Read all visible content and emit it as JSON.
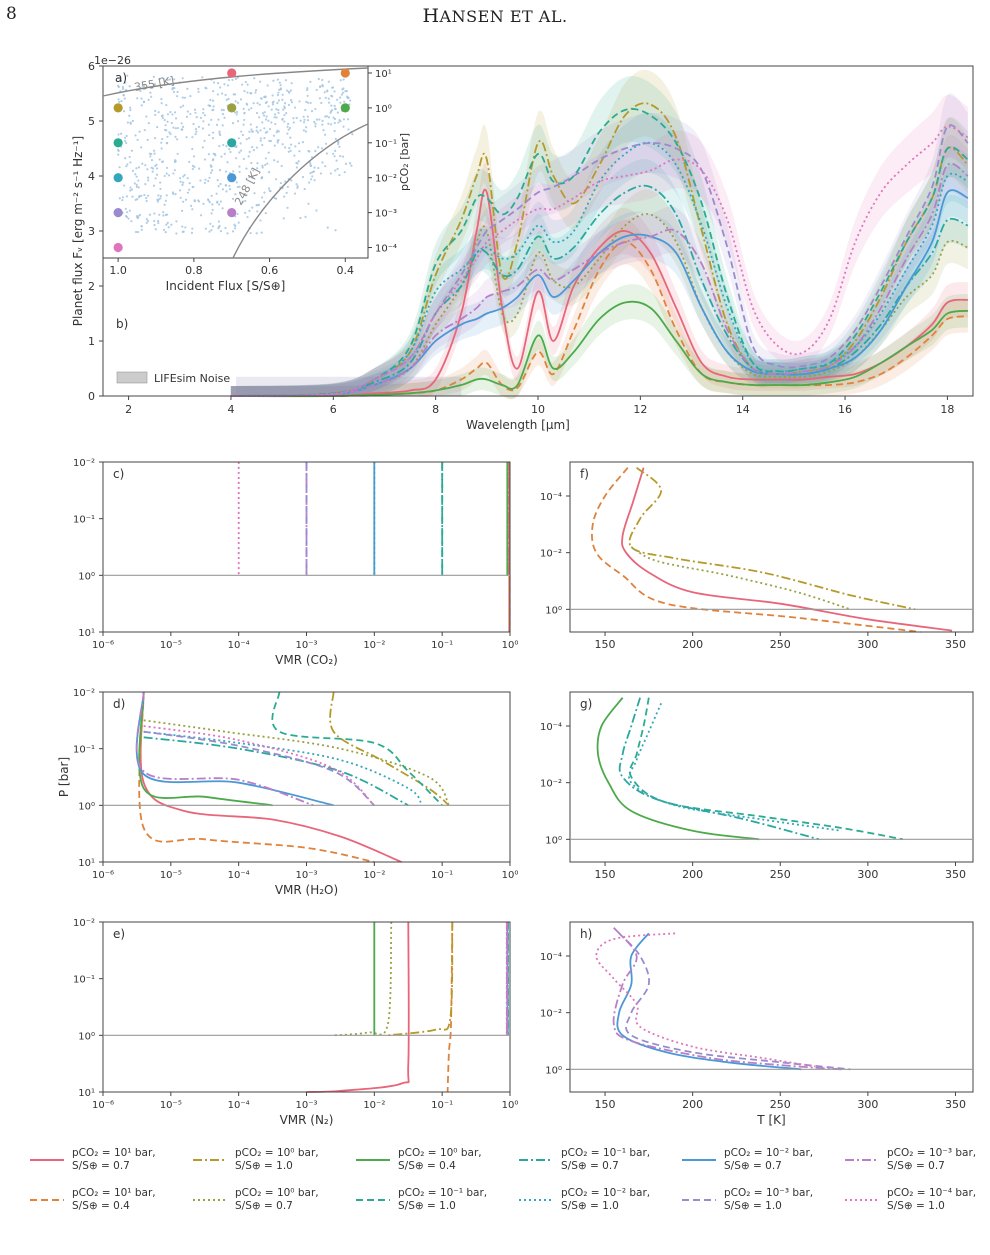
{
  "header": {
    "page_number": "8",
    "running_head_first": "H",
    "running_head_rest": "ANSEN ET AL."
  },
  "colors": {
    "c1": "#e8667a",
    "c2": "#e0823a",
    "c3": "#b59a2a",
    "c4": "#9aa142",
    "c5": "#4caa4a",
    "c6": "#2bab8f",
    "c7": "#2aa8a0",
    "c8": "#33a7bd",
    "c9": "#4a98d6",
    "c10": "#9a8bcf",
    "c11": "#b77fc8",
    "c12": "#e075bd"
  },
  "figure": {
    "panel_a": {
      "label": "a)",
      "exponent": "1e−26",
      "iso_hot": "355 [K]",
      "iso_cold": "248 [K]",
      "xlabel": "Incident Flux [S/S⊕]",
      "ylabel_right": "pCO₂ [bar]",
      "xticks": [
        "1.0",
        "0.8",
        "0.6",
        "0.4"
      ],
      "yticks_right": [
        "10¹",
        "10⁰",
        "10⁻¹",
        "10⁻²",
        "10⁻³",
        "10⁻⁴"
      ]
    },
    "panel_b": {
      "label": "b)",
      "xlabel": "Wavelength [µm]",
      "ylabel": "Planet flux Fᵥ [erg m⁻² s⁻¹ Hz⁻¹]",
      "noise_label": "LIFEsim Noise",
      "xticks": [
        "2",
        "4",
        "6",
        "8",
        "10",
        "12",
        "14",
        "16",
        "18"
      ],
      "yticks": [
        "0",
        "1",
        "2",
        "3",
        "4",
        "5",
        "6"
      ]
    },
    "panel_c": {
      "label": "c)",
      "xlabel": "VMR (CO₂)"
    },
    "panel_d": {
      "label": "d)",
      "xlabel": "VMR (H₂O)",
      "ylabel": "P [bar]"
    },
    "panel_e": {
      "label": "e)",
      "xlabel": "VMR (N₂)"
    },
    "panel_f": {
      "label": "f)"
    },
    "panel_g": {
      "label": "g)"
    },
    "panel_h": {
      "label": "h)",
      "xlabel": "T [K]"
    },
    "vmr_xticks": [
      "10⁻⁶",
      "10⁻⁵",
      "10⁻⁴",
      "10⁻³",
      "10⁻²",
      "10⁻¹",
      "10⁰"
    ],
    "p_yticks": [
      "10⁻²",
      "10⁻¹",
      "10⁰",
      "10¹"
    ],
    "t_xticks": [
      "150",
      "200",
      "250",
      "300",
      "350"
    ],
    "t_yticks": [
      "10⁻⁴",
      "10⁻²",
      "10⁰"
    ]
  },
  "legend": [
    {
      "l1": "pCO₂ = 10¹ bar,",
      "l2": "S/S⊕ = 0.7",
      "color": "#e8667a",
      "dash": ""
    },
    {
      "l1": "pCO₂ = 10¹ bar,",
      "l2": "S/S⊕ = 0.4",
      "color": "#e0823a",
      "dash": "7,4"
    },
    {
      "l1": "pCO₂ = 10⁰ bar,",
      "l2": "S/S⊕ = 1.0",
      "color": "#b59a2a",
      "dash": "9,3,2,3"
    },
    {
      "l1": "pCO₂ = 10⁰ bar,",
      "l2": "S/S⊕ = 0.7",
      "color": "#9aa142",
      "dash": "2,3"
    },
    {
      "l1": "pCO₂ = 10⁰ bar,",
      "l2": "S/S⊕ = 0.4",
      "color": "#4caa4a",
      "dash": ""
    },
    {
      "l1": "pCO₂ = 10⁻¹ bar,",
      "l2": "S/S⊕ = 1.0",
      "color": "#2bab8f",
      "dash": "7,4"
    },
    {
      "l1": "pCO₂ = 10⁻¹ bar,",
      "l2": "S/S⊕ = 0.7",
      "color": "#2aa8a0",
      "dash": "9,3,2,3"
    },
    {
      "l1": "pCO₂ = 10⁻² bar,",
      "l2": "S/S⊕ = 1.0",
      "color": "#33a7bd",
      "dash": "2,3"
    },
    {
      "l1": "pCO₂ = 10⁻² bar,",
      "l2": "S/S⊕ = 0.7",
      "color": "#4a98d6",
      "dash": ""
    },
    {
      "l1": "pCO₂ = 10⁻³ bar,",
      "l2": "S/S⊕ = 1.0",
      "color": "#9a8bcf",
      "dash": "7,4"
    },
    {
      "l1": "pCO₂ = 10⁻³ bar,",
      "l2": "S/S⊕ = 0.7",
      "color": "#b77fc8",
      "dash": "9,3,2,3"
    },
    {
      "l1": "pCO₂ = 10⁻⁴ bar,",
      "l2": "S/S⊕ = 1.0",
      "color": "#e075bd",
      "dash": "2,3"
    }
  ],
  "chart_data": {
    "type": "line",
    "series_keys": [
      "c1",
      "c2",
      "c3",
      "c4",
      "c5",
      "c6",
      "c7",
      "c8",
      "c9",
      "c10",
      "c11",
      "c12"
    ],
    "inset_grid": [
      {
        "s": 0.7,
        "pco2_exp": 1,
        "key": "c1"
      },
      {
        "s": 0.4,
        "pco2_exp": 1,
        "key": "c2"
      },
      {
        "s": 1.0,
        "pco2_exp": 0,
        "key": "c3"
      },
      {
        "s": 0.7,
        "pco2_exp": 0,
        "key": "c4"
      },
      {
        "s": 0.4,
        "pco2_exp": 0,
        "key": "c5"
      },
      {
        "s": 1.0,
        "pco2_exp": -1,
        "key": "c6"
      },
      {
        "s": 0.7,
        "pco2_exp": -1,
        "key": "c7"
      },
      {
        "s": 1.0,
        "pco2_exp": -2,
        "key": "c8"
      },
      {
        "s": 0.7,
        "pco2_exp": -2,
        "key": "c9"
      },
      {
        "s": 1.0,
        "pco2_exp": -3,
        "key": "c10"
      },
      {
        "s": 0.7,
        "pco2_exp": -3,
        "key": "c11"
      },
      {
        "s": 1.0,
        "pco2_exp": -4,
        "key": "c12"
      }
    ],
    "spectra_wavelength_um": [
      4,
      6,
      6.8,
      7.5,
      8,
      8.5,
      8.8,
      9.0,
      9.3,
      9.6,
      10.0,
      10.3,
      10.7,
      11.2,
      11.7,
      12.2,
      12.7,
      13.2,
      13.7,
      14.2,
      14.7,
      15.2,
      15.7,
      16.2,
      16.7,
      17.2,
      17.7,
      18.0,
      18.4
    ],
    "spectra_flux_1e26": {
      "c1": [
        0.0,
        0.0,
        0.05,
        0.1,
        0.3,
        1.5,
        3.0,
        3.7,
        1.6,
        0.5,
        1.9,
        1.0,
        2.0,
        2.7,
        3.0,
        2.6,
        1.6,
        0.6,
        0.35,
        0.3,
        0.3,
        0.3,
        0.35,
        0.4,
        0.6,
        0.9,
        1.3,
        1.7,
        1.75
      ],
      "c2": [
        0.0,
        0.0,
        0.02,
        0.05,
        0.1,
        0.3,
        0.5,
        0.6,
        0.2,
        0.15,
        0.8,
        0.4,
        1.2,
        2.3,
        2.8,
        2.3,
        1.2,
        0.4,
        0.25,
        0.2,
        0.2,
        0.2,
        0.2,
        0.25,
        0.4,
        0.7,
        1.1,
        1.4,
        1.45
      ],
      "c3": [
        0.0,
        0.05,
        0.3,
        0.8,
        2.2,
        3.2,
        4.0,
        4.3,
        2.2,
        2.8,
        4.6,
        4.0,
        3.5,
        4.2,
        5.1,
        5.3,
        4.7,
        3.0,
        1.3,
        0.5,
        0.4,
        0.45,
        0.55,
        1.0,
        1.8,
        2.8,
        3.6,
        4.5,
        4.2
      ],
      "c4": [
        0.0,
        0.03,
        0.2,
        0.5,
        1.3,
        2.0,
        2.8,
        3.0,
        1.5,
        1.5,
        2.6,
        2.1,
        2.0,
        2.5,
        3.1,
        3.3,
        2.8,
        1.6,
        0.8,
        0.4,
        0.35,
        0.35,
        0.45,
        0.7,
        1.2,
        1.8,
        2.2,
        2.8,
        2.7
      ],
      "c5": [
        0.0,
        0.0,
        0.02,
        0.05,
        0.1,
        0.2,
        0.3,
        0.3,
        0.2,
        0.2,
        1.1,
        0.5,
        0.8,
        1.4,
        1.7,
        1.6,
        1.0,
        0.4,
        0.25,
        0.2,
        0.2,
        0.2,
        0.25,
        0.35,
        0.6,
        0.9,
        1.2,
        1.5,
        1.55
      ],
      "c6": [
        0.0,
        0.05,
        0.3,
        0.9,
        2.4,
        3.0,
        3.6,
        3.6,
        3.3,
        3.6,
        4.4,
        3.9,
        4.0,
        4.8,
        5.2,
        5.1,
        4.6,
        3.5,
        1.8,
        0.6,
        0.45,
        0.5,
        0.6,
        1.1,
        1.9,
        2.8,
        3.6,
        4.5,
        4.3
      ],
      "c7": [
        0.0,
        0.04,
        0.25,
        0.6,
        1.5,
        2.0,
        2.6,
        2.6,
        2.2,
        2.3,
        2.9,
        2.5,
        2.7,
        3.3,
        3.7,
        3.8,
        3.3,
        2.1,
        1.1,
        0.5,
        0.4,
        0.4,
        0.5,
        0.8,
        1.3,
        2.0,
        2.6,
        3.2,
        3.1
      ],
      "c8": [
        0.0,
        0.04,
        0.3,
        0.8,
        1.9,
        2.3,
        2.6,
        2.7,
        2.5,
        2.6,
        3.1,
        2.8,
        3.0,
        3.9,
        4.4,
        4.6,
        4.2,
        3.1,
        1.6,
        0.6,
        0.45,
        0.5,
        0.6,
        0.9,
        1.5,
        2.3,
        3.1,
        4.0,
        3.9
      ],
      "c9": [
        0.0,
        0.03,
        0.2,
        0.5,
        1.0,
        1.3,
        1.4,
        1.5,
        1.6,
        1.8,
        2.2,
        1.8,
        2.1,
        2.6,
        2.9,
        2.9,
        2.6,
        1.6,
        0.8,
        0.45,
        0.4,
        0.4,
        0.5,
        0.7,
        1.2,
        2.0,
        2.8,
        3.7,
        3.6
      ],
      "c10": [
        0.0,
        0.04,
        0.3,
        0.7,
        1.5,
        2.2,
        2.7,
        3.0,
        3.2,
        3.4,
        3.7,
        3.8,
        4.0,
        4.3,
        4.5,
        4.6,
        4.5,
        4.1,
        2.7,
        0.9,
        0.55,
        0.55,
        0.7,
        1.2,
        2.0,
        2.9,
        3.8,
        4.9,
        4.6
      ],
      "c11": [
        0.0,
        0.03,
        0.2,
        0.5,
        1.1,
        1.4,
        1.6,
        1.8,
        1.9,
        2.0,
        2.3,
        2.1,
        2.3,
        2.6,
        2.8,
        2.9,
        3.0,
        2.4,
        1.2,
        0.5,
        0.4,
        0.45,
        0.55,
        0.9,
        1.6,
        2.5,
        3.3,
        4.2,
        4.0
      ],
      "c12": [
        0.0,
        0.04,
        0.3,
        0.7,
        1.5,
        2.1,
        2.5,
        2.8,
        3.0,
        3.2,
        3.4,
        3.4,
        3.6,
        3.9,
        4.0,
        4.1,
        4.3,
        4.1,
        3.2,
        1.6,
        0.9,
        0.8,
        1.4,
        2.8,
        3.7,
        4.2,
        4.6,
        4.9,
        4.7
      ]
    },
    "xlim_um": [
      1.5,
      18.5
    ],
    "ylim_flux": [
      0,
      6
    ],
    "ylim_pco2_log": [
      -4.3,
      1.2
    ]
  }
}
